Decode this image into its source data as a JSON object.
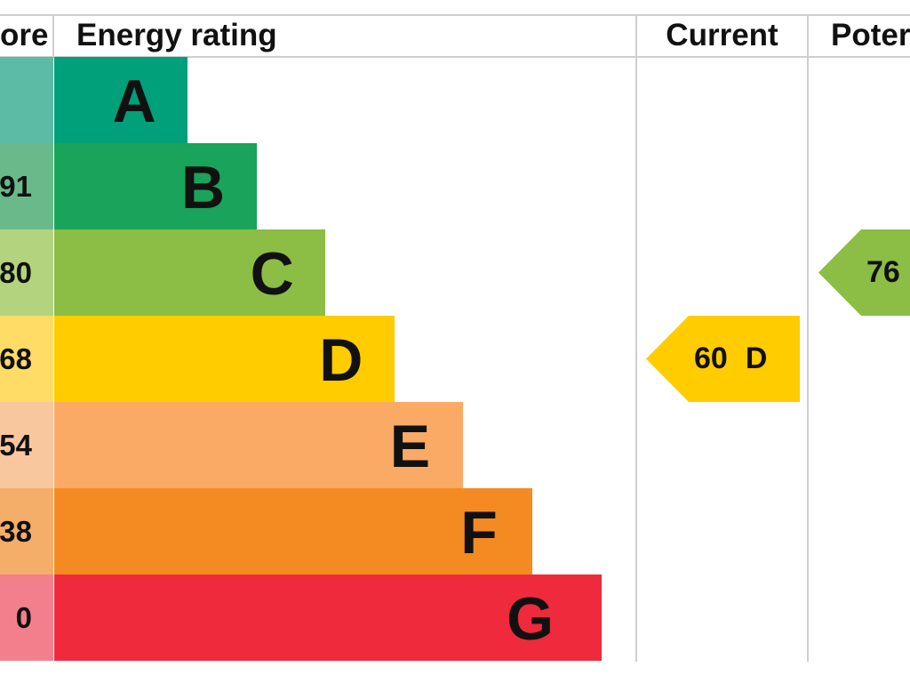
{
  "header": {
    "score_label": "ore",
    "rating_label": "Energy rating",
    "current_label": "Current",
    "potential_label": "Poter"
  },
  "chart_data": {
    "type": "bar",
    "categories": [
      "A",
      "B",
      "C",
      "D",
      "E",
      "F",
      "G"
    ],
    "score_ranges": [
      "",
      "91",
      "80",
      "68",
      "54",
      "38",
      "0"
    ],
    "band_colors": [
      "#00a07a",
      "#1aa35a",
      "#8cbd45",
      "#ffcc00",
      "#fbaa66",
      "#f38b22",
      "#ef2a3d"
    ],
    "score_cell_colors": [
      "#5cbba4",
      "#69b98b",
      "#b4d37e",
      "#ffdc66",
      "#f9c79e",
      "#f5ad6a",
      "#f47f8c"
    ],
    "current": {
      "value": "60",
      "band": "D",
      "color": "#ffcc00"
    },
    "potential": {
      "value": "76",
      "band": "C",
      "color": "#8cbd45"
    }
  }
}
